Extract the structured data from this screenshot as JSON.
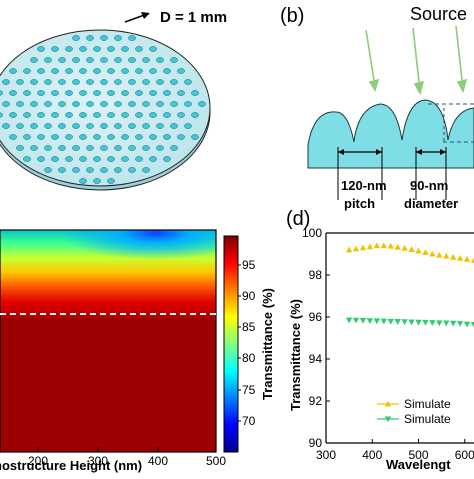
{
  "panel_a": {
    "annotation": "D = 1 mm"
  },
  "panel_b": {
    "label": "(b)",
    "source_label": "Source",
    "pitch_line1": "120-nm",
    "pitch_line2": "pitch",
    "diameter_line1": "90-nm",
    "diameter_line2": "diameter"
  },
  "panel_c": {
    "colorbar_label": "Transmittance (%)",
    "colorbar_ticks": [
      "95",
      "90",
      "85",
      "80",
      "75",
      "70"
    ],
    "colorbar_colors": [
      "#7f0000",
      "#ff0000",
      "#ff8000",
      "#ffff00",
      "#80ff80",
      "#00ffff",
      "#0080ff",
      "#0000ff",
      "#00008f"
    ],
    "xlabel": "nostructure Height (nm)",
    "xticks": [
      "200",
      "300",
      "400",
      "500"
    ]
  },
  "chart_data": {
    "type": "scatter",
    "panel_label": "(d)",
    "ylabel": "Transmittance (%)",
    "xlabel": "Wavelengt",
    "ylim": [
      90,
      100
    ],
    "xlim": [
      300,
      620
    ],
    "yticks": [
      "100",
      "98",
      "96",
      "94",
      "92",
      "90"
    ],
    "xticks": [
      "300",
      "400",
      "500",
      "600"
    ],
    "series": [
      {
        "name": "Simulate",
        "color": "#f2c200",
        "marker": "triangle-up",
        "x": [
          350,
          365,
          380,
          395,
          410,
          425,
          440,
          455,
          470,
          485,
          500,
          515,
          530,
          545,
          560,
          575,
          590,
          605,
          620
        ],
        "y": [
          99.2,
          99.25,
          99.3,
          99.35,
          99.4,
          99.4,
          99.38,
          99.33,
          99.28,
          99.22,
          99.15,
          99.08,
          99.0,
          98.95,
          98.9,
          98.85,
          98.8,
          98.75,
          98.7
        ]
      },
      {
        "name": "Simulate",
        "color": "#2ecc71",
        "marker": "triangle-down",
        "x": [
          350,
          365,
          380,
          395,
          410,
          425,
          440,
          455,
          470,
          485,
          500,
          515,
          530,
          545,
          560,
          575,
          590,
          605,
          620
        ],
        "y": [
          95.85,
          95.84,
          95.83,
          95.82,
          95.81,
          95.8,
          95.79,
          95.78,
          95.77,
          95.76,
          95.75,
          95.74,
          95.73,
          95.72,
          95.71,
          95.7,
          95.68,
          95.66,
          95.64
        ]
      }
    ]
  }
}
